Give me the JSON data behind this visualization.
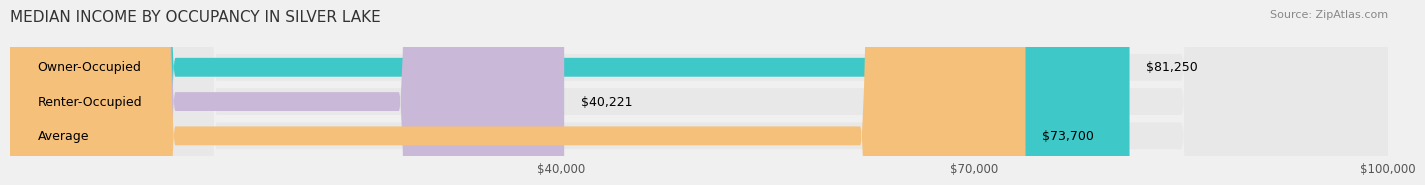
{
  "title": "MEDIAN INCOME BY OCCUPANCY IN SILVER LAKE",
  "source": "Source: ZipAtlas.com",
  "categories": [
    "Owner-Occupied",
    "Renter-Occupied",
    "Average"
  ],
  "values": [
    81250,
    40221,
    73700
  ],
  "bar_colors": [
    "#3ec8c8",
    "#c9b8d8",
    "#f5c07a"
  ],
  "value_labels": [
    "$81,250",
    "$40,221",
    "$73,700"
  ],
  "xlim": [
    0,
    100000
  ],
  "xticks": [
    40000,
    70000,
    100000
  ],
  "xtick_labels": [
    "$40,000",
    "$70,000",
    "$100,000"
  ],
  "background_color": "#f0f0f0",
  "bar_background_color": "#e8e8e8",
  "title_fontsize": 11,
  "source_fontsize": 8,
  "label_fontsize": 9,
  "value_fontsize": 9,
  "tick_fontsize": 8.5
}
